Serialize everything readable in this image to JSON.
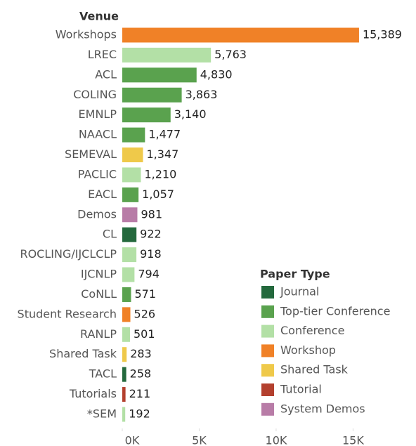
{
  "chart_data": {
    "type": "barh",
    "axis_title": "Venue",
    "categories": [
      "Workshops",
      "LREC",
      "ACL",
      "COLING",
      "EMNLP",
      "NAACL",
      "SEMEVAL",
      "PACLIC",
      "EACL",
      "Demos",
      "CL",
      "ROCLING/IJCLCLP",
      "IJCNLP",
      "CoNLL",
      "Student Research",
      "RANLP",
      "Shared Task",
      "TACL",
      "Tutorials",
      "*SEM"
    ],
    "values": [
      15389,
      5763,
      4830,
      3863,
      3140,
      1477,
      1347,
      1210,
      1057,
      981,
      922,
      918,
      794,
      571,
      526,
      501,
      283,
      258,
      211,
      192
    ],
    "value_labels": [
      "15,389",
      "5,763",
      "4,830",
      "3,863",
      "3,140",
      "1,477",
      "1,347",
      "1,210",
      "1,057",
      "981",
      "922",
      "918",
      "794",
      "571",
      "526",
      "501",
      "283",
      "258",
      "211",
      "192"
    ],
    "colors": [
      "#f08127",
      "#b3e0a6",
      "#5aa24e",
      "#5aa24e",
      "#5aa24e",
      "#5aa24e",
      "#efc94a",
      "#b3e0a6",
      "#5aa24e",
      "#b87ca7",
      "#24693d",
      "#b3e0a6",
      "#b3e0a6",
      "#5aa24e",
      "#f08127",
      "#b3e0a6",
      "#efc94a",
      "#24693d",
      "#b3402e",
      "#b3e0a6"
    ],
    "xlim": [
      0,
      19000
    ],
    "xticks": [
      {
        "value": 0,
        "label": "0K"
      },
      {
        "value": 5000,
        "label": "5K"
      },
      {
        "value": 10000,
        "label": "10K"
      },
      {
        "value": 15000,
        "label": "15K"
      }
    ],
    "legend": {
      "title": "Paper Type",
      "items": [
        {
          "name": "Journal",
          "color": "#24693d"
        },
        {
          "name": "Top-tier Conference",
          "color": "#5aa24e"
        },
        {
          "name": "Conference",
          "color": "#b3e0a6"
        },
        {
          "name": "Workshop",
          "color": "#f08127"
        },
        {
          "name": "Shared Task",
          "color": "#efc94a"
        },
        {
          "name": "Tutorial",
          "color": "#b3402e"
        },
        {
          "name": "System Demos",
          "color": "#b87ca7"
        }
      ]
    }
  }
}
